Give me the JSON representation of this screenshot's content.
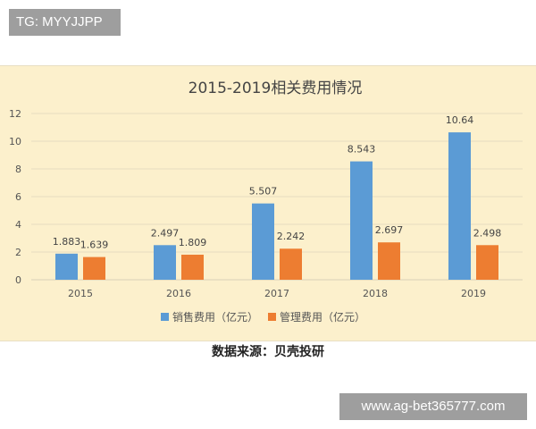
{
  "watermark_top": "TG: MYYJJPP",
  "watermark_bottom": "www.ag-bet365777.com",
  "source": "数据来源：贝壳投研",
  "chart_data": {
    "type": "bar",
    "title": "2015-2019相关费用情况",
    "categories": [
      "2015",
      "2016",
      "2017",
      "2018",
      "2019"
    ],
    "series": [
      {
        "name": "销售费用（亿元）",
        "color": "#5b9bd5",
        "values": [
          1.883,
          2.497,
          5.507,
          8.543,
          10.64
        ],
        "labels": [
          "1.883",
          "2.497",
          "5.507",
          "8.543",
          "10.64"
        ]
      },
      {
        "name": "管理费用（亿元）",
        "color": "#ed7d31",
        "values": [
          1.639,
          1.809,
          2.242,
          2.697,
          2.498
        ],
        "labels": [
          "1.639",
          "1.809",
          "2.242",
          "2.697",
          "2.498"
        ]
      }
    ],
    "yticks": [
      "0",
      "2",
      "4",
      "6",
      "8",
      "10",
      "12"
    ],
    "ylim": [
      0,
      12
    ],
    "grid": true,
    "legend": "bottom"
  }
}
